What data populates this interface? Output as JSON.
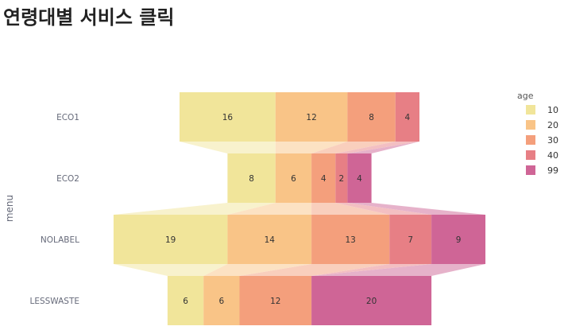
{
  "page": {
    "title": "연령대별 서비스 클릭"
  },
  "chart_data": {
    "type": "funnel",
    "stages": [
      "ECO1",
      "ECO2",
      "NOLABEL",
      "LESSWASTE"
    ],
    "ylabel": "menu",
    "legend": {
      "title": "age",
      "position": "right"
    },
    "series": [
      {
        "name": "10",
        "color": "#f1e59a",
        "connector_color": "#f8f2cd",
        "values": [
          16,
          8,
          19,
          6
        ]
      },
      {
        "name": "20",
        "color": "#f9c487",
        "connector_color": "#fce2c3",
        "values": [
          12,
          6,
          14,
          6
        ]
      },
      {
        "name": "30",
        "color": "#f49f7c",
        "connector_color": "#f9cfbd",
        "values": [
          8,
          4,
          13,
          12
        ]
      },
      {
        "name": "40",
        "color": "#e77f85",
        "connector_color": "#f3bfc2",
        "values": [
          4,
          2,
          7,
          0
        ]
      },
      {
        "name": "99",
        "color": "#cf6596",
        "connector_color": "#e6b2ca",
        "values": [
          0,
          4,
          9,
          20
        ]
      }
    ]
  }
}
